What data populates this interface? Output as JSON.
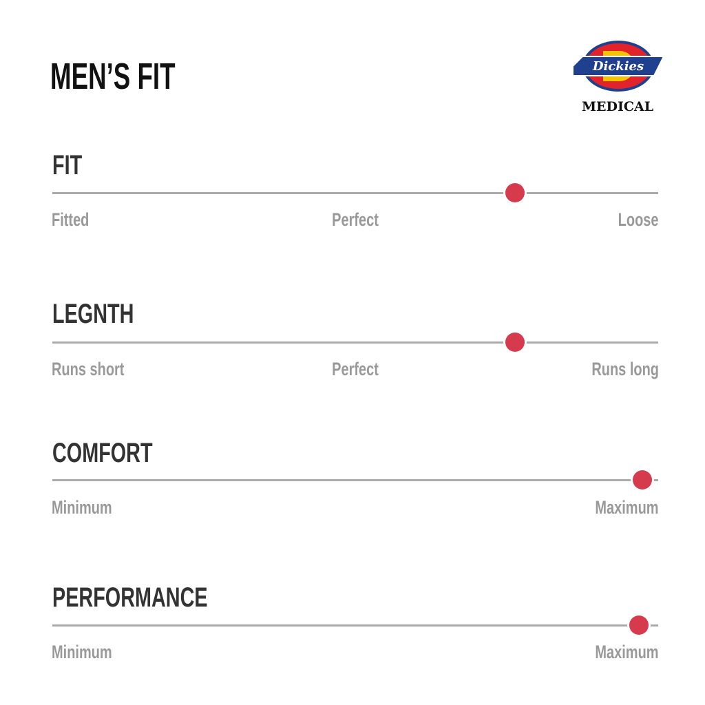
{
  "title": "MEN’S FIT",
  "logo": {
    "brand": "Dickies",
    "sub": "MEDICAL",
    "colors": {
      "blue": "#1f3f8f",
      "red": "#e2232a",
      "yellow": "#f5c400"
    }
  },
  "accent_color": "#d63b4d",
  "scales": [
    {
      "title": "FIT",
      "left": "Fitted",
      "middle": "Perfect",
      "right": "Loose",
      "value": 0.764
    },
    {
      "title": "LEGNTH",
      "left": "Runs short",
      "middle": "Perfect",
      "right": "Runs long",
      "value": 0.764
    },
    {
      "title": "COMFORT",
      "left": "Minimum",
      "right": "Maximum",
      "value": 0.974
    },
    {
      "title": "PERFORMANCE",
      "left": "Minimum",
      "right": "Maximum",
      "value": 0.968
    }
  ]
}
